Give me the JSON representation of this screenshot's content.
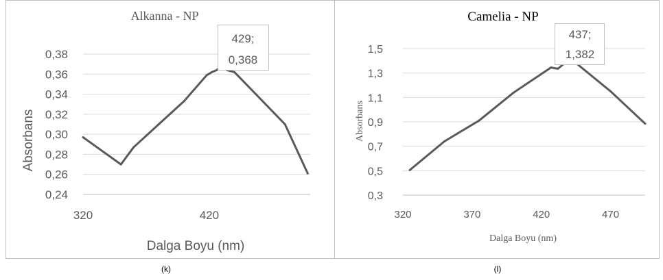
{
  "chart_data": [
    {
      "type": "line",
      "title": "Alkanna - NP",
      "xlabel": "Dalga Boyu (nm)",
      "ylabel": "Absorbans",
      "caption": "(k)",
      "xlim": [
        320,
        500
      ],
      "ylim": [
        0.24,
        0.38
      ],
      "xticks": [
        320,
        420
      ],
      "xtick_labels": [
        "320",
        "420"
      ],
      "yticks": [
        0.24,
        0.26,
        0.28,
        0.3,
        0.32,
        0.34,
        0.36,
        0.38
      ],
      "ytick_labels": [
        "0,24",
        "0,26",
        "0,28",
        "0,30",
        "0,32",
        "0,34",
        "0,36",
        "0,38"
      ],
      "grid": "horizontal",
      "line_color": "#595959",
      "series": [
        {
          "x": [
            320,
            350,
            360,
            380,
            400,
            418,
            422,
            426,
            429,
            434,
            440,
            480,
            498
          ],
          "values": [
            0.297,
            0.27,
            0.287,
            0.31,
            0.333,
            0.359,
            0.362,
            0.364,
            0.368,
            0.364,
            0.362,
            0.31,
            0.261
          ]
        }
      ],
      "annotation": {
        "x": 429,
        "y": 0.368,
        "line1": "429;",
        "line2": "0,368"
      }
    },
    {
      "type": "line",
      "title": "Camelia - NP",
      "xlabel": "Dalga Boyu (nm)",
      "ylabel": "Absorbans",
      "caption": "(l)",
      "xlim": [
        320,
        495
      ],
      "ylim": [
        0.3,
        1.5
      ],
      "xticks": [
        320,
        370,
        420,
        470
      ],
      "xtick_labels": [
        "320",
        "370",
        "420",
        "470"
      ],
      "yticks": [
        0.3,
        0.5,
        0.7,
        0.9,
        1.1,
        1.3,
        1.5
      ],
      "ytick_labels": [
        "0,3",
        "0,5",
        "0,7",
        "0,9",
        "1,1",
        "1,3",
        "1,5"
      ],
      "grid": "horizontal",
      "line_color": "#595959",
      "series": [
        {
          "x": [
            325,
            350,
            375,
            400,
            427,
            432,
            437,
            445,
            470,
            495
          ],
          "values": [
            0.505,
            0.74,
            0.91,
            1.14,
            1.345,
            1.335,
            1.382,
            1.382,
            1.15,
            0.885
          ]
        }
      ],
      "annotation": {
        "x": 437,
        "y": 1.382,
        "line1": "437;",
        "line2": "1,382"
      }
    }
  ]
}
